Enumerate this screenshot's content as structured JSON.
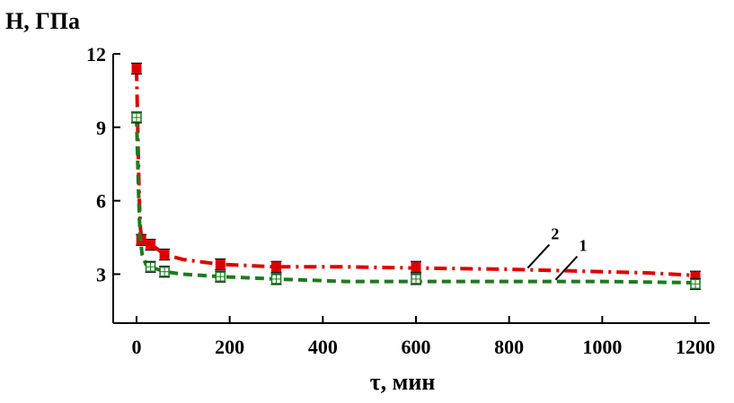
{
  "chart_data": {
    "type": "line",
    "title": "",
    "xlabel": "τ, мин",
    "ylabel": "H, ГПа",
    "xlim": [
      -50,
      1230
    ],
    "ylim": [
      1,
      12
    ],
    "xticks": [
      0,
      200,
      400,
      600,
      800,
      1000,
      1200
    ],
    "yticks": [
      3,
      6,
      9,
      12
    ],
    "grid": false,
    "legend": "none",
    "series": [
      {
        "label": "2",
        "color": "#dd0000",
        "style": "dashdot",
        "marker": "filled-square",
        "points": [
          [
            0,
            11.4
          ],
          [
            10,
            4.4
          ],
          [
            30,
            4.2
          ],
          [
            60,
            3.8
          ],
          [
            180,
            3.4
          ],
          [
            300,
            3.3
          ],
          [
            600,
            3.3
          ],
          [
            1200,
            2.9
          ]
        ],
        "curve": [
          [
            0,
            11.4
          ],
          [
            2,
            9.5
          ],
          [
            4,
            7.5
          ],
          [
            6,
            6.0
          ],
          [
            8,
            5.0
          ],
          [
            10,
            4.5
          ],
          [
            20,
            4.3
          ],
          [
            40,
            4.1
          ],
          [
            60,
            3.8
          ],
          [
            100,
            3.6
          ],
          [
            180,
            3.4
          ],
          [
            300,
            3.3
          ],
          [
            450,
            3.3
          ],
          [
            600,
            3.25
          ],
          [
            800,
            3.2
          ],
          [
            1000,
            3.1
          ],
          [
            1100,
            3.05
          ],
          [
            1200,
            2.95
          ]
        ]
      },
      {
        "label": "1",
        "color": "#1f7a1f",
        "style": "dashed",
        "marker": "open-square",
        "points": [
          [
            0,
            9.4
          ],
          [
            30,
            3.3
          ],
          [
            60,
            3.1
          ],
          [
            180,
            2.9
          ],
          [
            300,
            2.8
          ],
          [
            600,
            2.8
          ],
          [
            1200,
            2.6
          ]
        ],
        "curve": [
          [
            0,
            9.4
          ],
          [
            2,
            8.0
          ],
          [
            4,
            6.5
          ],
          [
            6,
            5.3
          ],
          [
            8,
            4.5
          ],
          [
            12,
            3.8
          ],
          [
            20,
            3.4
          ],
          [
            30,
            3.3
          ],
          [
            60,
            3.1
          ],
          [
            100,
            3.0
          ],
          [
            180,
            2.9
          ],
          [
            300,
            2.8
          ],
          [
            450,
            2.7
          ],
          [
            600,
            2.7
          ],
          [
            800,
            2.7
          ],
          [
            1000,
            2.7
          ],
          [
            1200,
            2.65
          ]
        ]
      }
    ],
    "annotations": [
      {
        "text": "2",
        "series": 0,
        "at_x": 840
      },
      {
        "text": "1",
        "series": 1,
        "at_x": 900
      }
    ]
  }
}
